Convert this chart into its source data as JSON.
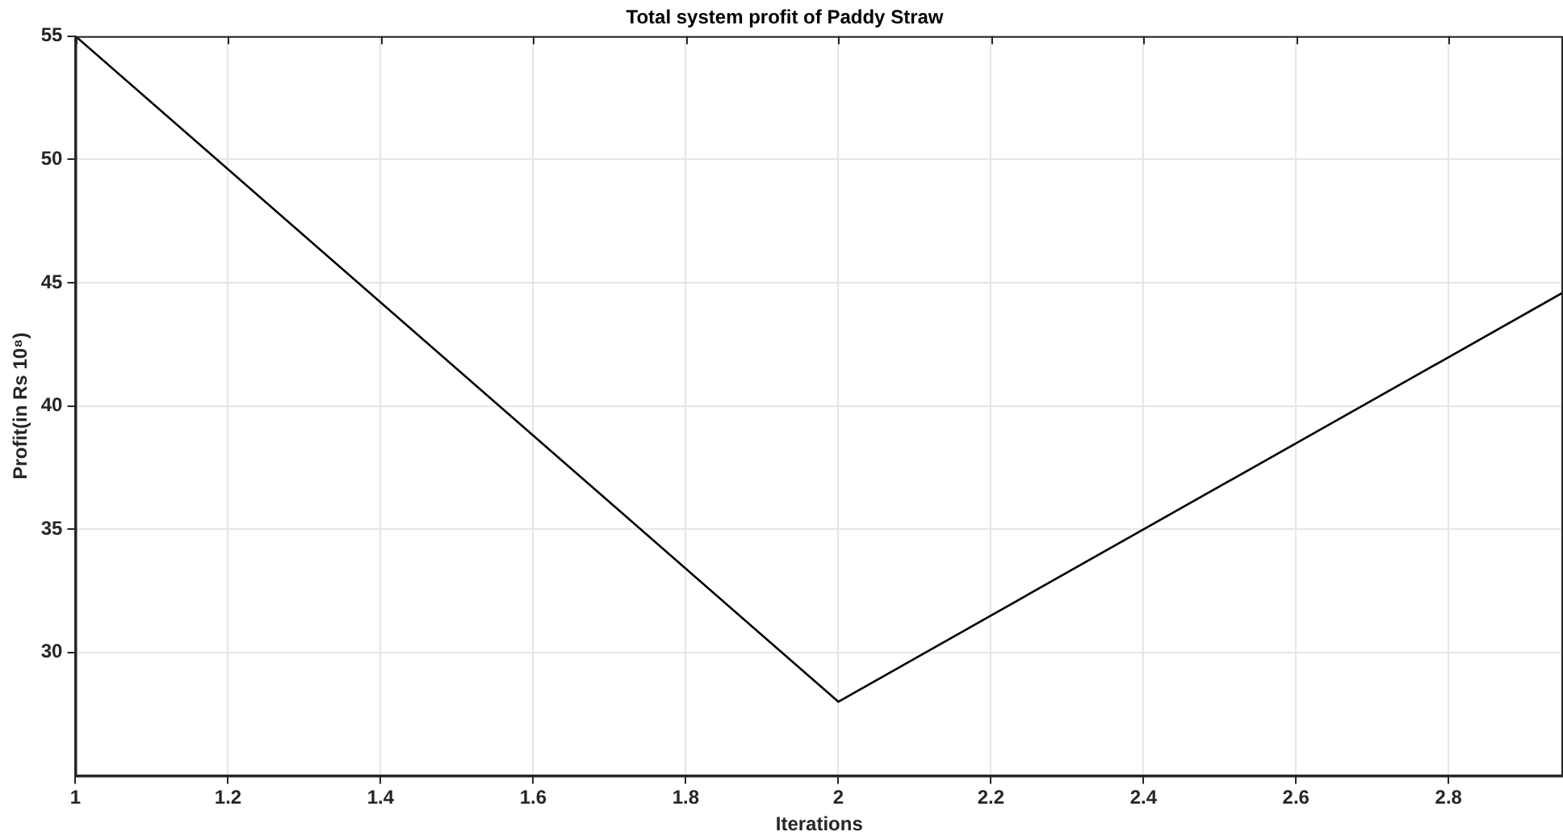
{
  "chart_data": {
    "type": "line",
    "title": "Total system profit of Paddy Straw",
    "xlabel": "Iterations",
    "ylabel": "Profit(in Rs 10⁸)",
    "x": [
      1,
      2,
      2.95
    ],
    "series": [
      {
        "color": "#000000",
        "values": [
          55,
          28,
          44.6
        ]
      }
    ],
    "xlim": [
      1,
      2.95
    ],
    "xticks": [
      1,
      1.2,
      1.4,
      1.6,
      1.8,
      2,
      2.2,
      2.4,
      2.6,
      2.8
    ],
    "ylim": [
      25,
      55
    ],
    "yticks": [
      30,
      35,
      40,
      45,
      50,
      55
    ],
    "grid": true,
    "legend": false,
    "marker": "none",
    "line_style": "solid"
  }
}
